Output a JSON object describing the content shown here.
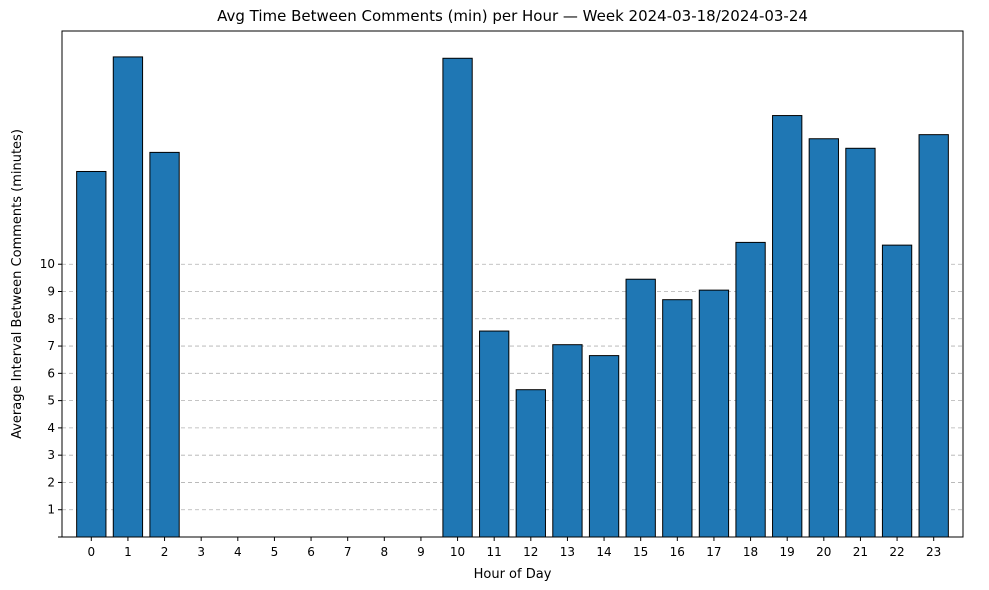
{
  "chart_data": {
    "type": "bar",
    "title": "Avg Time Between Comments (min) per Hour — Week 2024-03-18/2024-03-24",
    "xlabel": "Hour of Day",
    "ylabel": "Average Interval Between Comments (minutes)",
    "categories": [
      "0",
      "1",
      "2",
      "3",
      "4",
      "5",
      "6",
      "7",
      "8",
      "9",
      "10",
      "11",
      "12",
      "13",
      "14",
      "15",
      "16",
      "17",
      "18",
      "19",
      "20",
      "21",
      "22",
      "23"
    ],
    "values": [
      13.4,
      17.6,
      14.1,
      0,
      0,
      0,
      0,
      0,
      0,
      0,
      17.55,
      7.55,
      5.4,
      7.05,
      6.65,
      9.45,
      8.7,
      9.05,
      10.8,
      15.45,
      14.6,
      14.25,
      10.7,
      14.75
    ],
    "yticks": [
      1,
      2,
      3,
      4,
      5,
      6,
      7,
      8,
      9,
      10
    ],
    "ylim": [
      0,
      18.55
    ],
    "grid": "y",
    "bar_color": "#1f77b4",
    "edge_color": "#000000"
  }
}
